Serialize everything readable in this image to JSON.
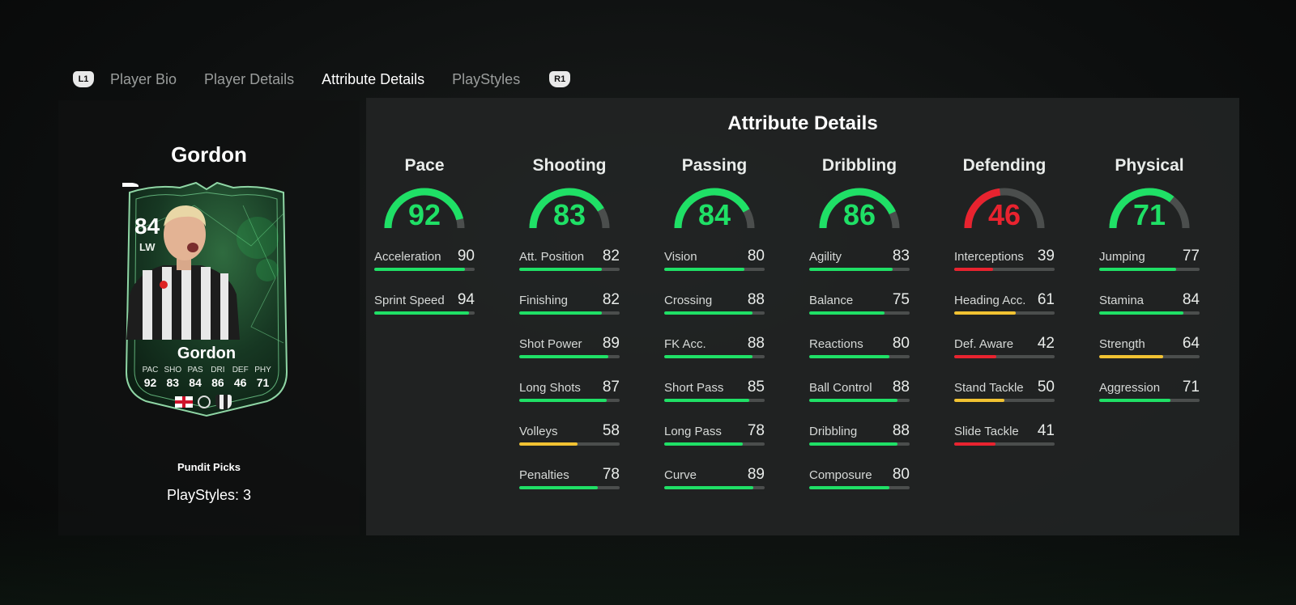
{
  "tabs": {
    "left_hint": "L1",
    "right_hint": "R1",
    "items": [
      "Player Bio",
      "Player Details",
      "Attribute Details",
      "PlayStyles"
    ],
    "active_index": 2
  },
  "player": {
    "name": "Gordon",
    "card": {
      "rating": "84",
      "position": "LW",
      "name": "Gordon",
      "stats": [
        {
          "label": "PAC",
          "value": "92"
        },
        {
          "label": "SHO",
          "value": "83"
        },
        {
          "label": "PAS",
          "value": "84"
        },
        {
          "label": "DRI",
          "value": "86"
        },
        {
          "label": "DEF",
          "value": "46"
        },
        {
          "label": "PHY",
          "value": "71"
        }
      ],
      "nation_icon": "england-flag-icon",
      "league_icon": "premier-league-icon",
      "club_icon": "newcastle-crest-icon"
    },
    "version": "Pundit Picks",
    "playstyles": "PlayStyles: 3"
  },
  "colors": {
    "green": "#1fe066",
    "yellow": "#f1c232",
    "red": "#e8232f",
    "track": "#4b4e4d"
  },
  "attributes": {
    "title": "Attribute Details",
    "categories": [
      {
        "name": "Pace",
        "value": 92,
        "attrs": [
          {
            "name": "Acceleration",
            "value": 90
          },
          {
            "name": "Sprint Speed",
            "value": 94
          }
        ]
      },
      {
        "name": "Shooting",
        "value": 83,
        "attrs": [
          {
            "name": "Att. Position",
            "value": 82
          },
          {
            "name": "Finishing",
            "value": 82
          },
          {
            "name": "Shot Power",
            "value": 89
          },
          {
            "name": "Long Shots",
            "value": 87
          },
          {
            "name": "Volleys",
            "value": 58
          },
          {
            "name": "Penalties",
            "value": 78
          }
        ]
      },
      {
        "name": "Passing",
        "value": 84,
        "attrs": [
          {
            "name": "Vision",
            "value": 80
          },
          {
            "name": "Crossing",
            "value": 88
          },
          {
            "name": "FK Acc.",
            "value": 88
          },
          {
            "name": "Short Pass",
            "value": 85
          },
          {
            "name": "Long Pass",
            "value": 78
          },
          {
            "name": "Curve",
            "value": 89
          }
        ]
      },
      {
        "name": "Dribbling",
        "value": 86,
        "attrs": [
          {
            "name": "Agility",
            "value": 83
          },
          {
            "name": "Balance",
            "value": 75
          },
          {
            "name": "Reactions",
            "value": 80
          },
          {
            "name": "Ball Control",
            "value": 88
          },
          {
            "name": "Dribbling",
            "value": 88
          },
          {
            "name": "Composure",
            "value": 80
          }
        ]
      },
      {
        "name": "Defending",
        "value": 46,
        "attrs": [
          {
            "name": "Interceptions",
            "value": 39
          },
          {
            "name": "Heading Acc.",
            "value": 61
          },
          {
            "name": "Def. Aware",
            "value": 42
          },
          {
            "name": "Stand Tackle",
            "value": 50
          },
          {
            "name": "Slide Tackle",
            "value": 41
          }
        ]
      },
      {
        "name": "Physical",
        "value": 71,
        "attrs": [
          {
            "name": "Jumping",
            "value": 77
          },
          {
            "name": "Stamina",
            "value": 84
          },
          {
            "name": "Strength",
            "value": 64
          },
          {
            "name": "Aggression",
            "value": 71
          }
        ]
      }
    ]
  }
}
